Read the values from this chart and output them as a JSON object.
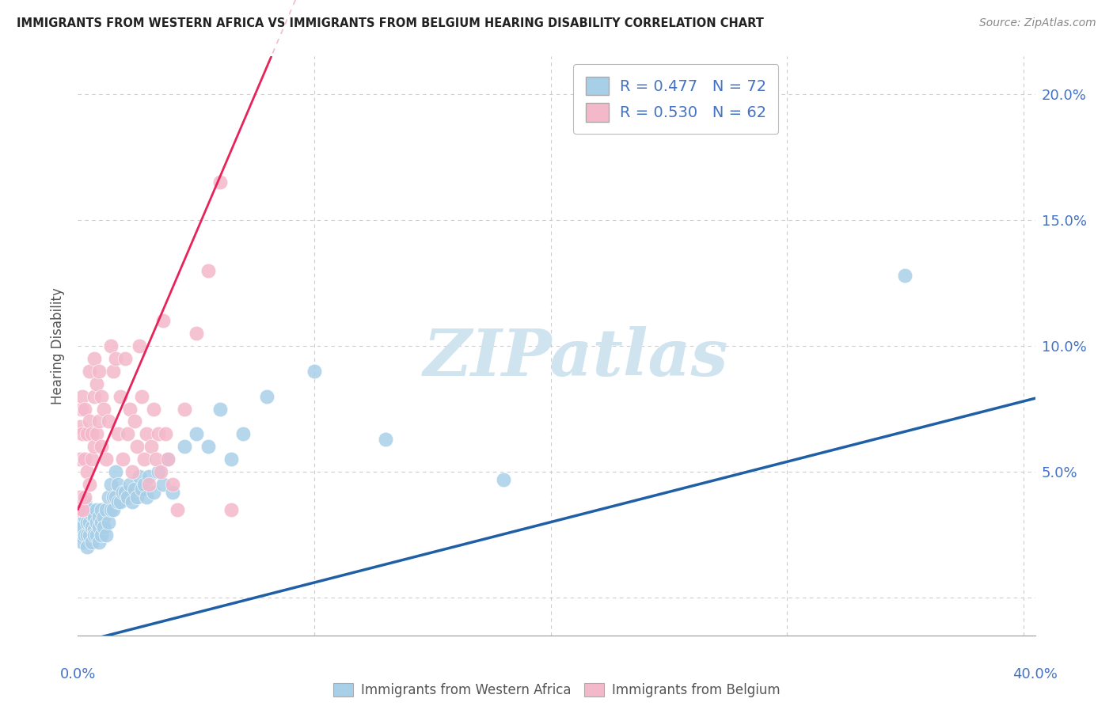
{
  "title": "IMMIGRANTS FROM WESTERN AFRICA VS IMMIGRANTS FROM BELGIUM HEARING DISABILITY CORRELATION CHART",
  "source": "Source: ZipAtlas.com",
  "ylabel": "Hearing Disability",
  "xlim": [
    0.0,
    0.405
  ],
  "ylim": [
    -0.015,
    0.215
  ],
  "yticks": [
    0.0,
    0.05,
    0.1,
    0.15,
    0.2
  ],
  "ytick_labels": [
    "",
    "5.0%",
    "10.0%",
    "15.0%",
    "20.0%"
  ],
  "legend_r1": "R = 0.477",
  "legend_n1": "N = 72",
  "legend_r2": "R = 0.530",
  "legend_n2": "N = 62",
  "blue_color": "#a8cfe8",
  "pink_color": "#f4b8cb",
  "trend_blue": "#1f5fa6",
  "trend_pink": "#e8235a",
  "trend_pink_dash": "#e8a0b8",
  "watermark": "ZIPatlas",
  "watermark_color": "#d0e4f0",
  "blue_intercept": -0.018,
  "blue_slope": 0.24,
  "pink_intercept": 0.035,
  "pink_slope": 2.2,
  "blue_x": [
    0.001,
    0.001,
    0.002,
    0.002,
    0.002,
    0.003,
    0.003,
    0.003,
    0.004,
    0.004,
    0.004,
    0.005,
    0.005,
    0.005,
    0.006,
    0.006,
    0.006,
    0.007,
    0.007,
    0.007,
    0.008,
    0.008,
    0.008,
    0.009,
    0.009,
    0.009,
    0.01,
    0.01,
    0.01,
    0.011,
    0.011,
    0.012,
    0.012,
    0.013,
    0.013,
    0.014,
    0.014,
    0.015,
    0.015,
    0.016,
    0.016,
    0.017,
    0.017,
    0.018,
    0.019,
    0.02,
    0.021,
    0.022,
    0.023,
    0.024,
    0.025,
    0.026,
    0.027,
    0.028,
    0.029,
    0.03,
    0.032,
    0.034,
    0.036,
    0.038,
    0.04,
    0.045,
    0.05,
    0.055,
    0.06,
    0.065,
    0.07,
    0.08,
    0.1,
    0.13,
    0.18,
    0.35
  ],
  "blue_y": [
    0.03,
    0.025,
    0.035,
    0.028,
    0.022,
    0.032,
    0.025,
    0.038,
    0.03,
    0.025,
    0.02,
    0.03,
    0.025,
    0.035,
    0.028,
    0.022,
    0.033,
    0.027,
    0.032,
    0.025,
    0.03,
    0.025,
    0.035,
    0.028,
    0.032,
    0.022,
    0.03,
    0.035,
    0.025,
    0.032,
    0.028,
    0.035,
    0.025,
    0.04,
    0.03,
    0.045,
    0.035,
    0.04,
    0.035,
    0.05,
    0.04,
    0.045,
    0.038,
    0.038,
    0.042,
    0.042,
    0.04,
    0.045,
    0.038,
    0.043,
    0.04,
    0.048,
    0.043,
    0.045,
    0.04,
    0.048,
    0.042,
    0.05,
    0.045,
    0.055,
    0.042,
    0.06,
    0.065,
    0.06,
    0.075,
    0.055,
    0.065,
    0.08,
    0.09,
    0.063,
    0.047,
    0.128
  ],
  "pink_x": [
    0.0005,
    0.001,
    0.001,
    0.001,
    0.0015,
    0.002,
    0.002,
    0.002,
    0.003,
    0.003,
    0.003,
    0.004,
    0.004,
    0.005,
    0.005,
    0.005,
    0.006,
    0.006,
    0.007,
    0.007,
    0.007,
    0.008,
    0.008,
    0.009,
    0.009,
    0.01,
    0.01,
    0.011,
    0.012,
    0.013,
    0.014,
    0.015,
    0.016,
    0.017,
    0.018,
    0.019,
    0.02,
    0.021,
    0.022,
    0.023,
    0.024,
    0.025,
    0.026,
    0.027,
    0.028,
    0.029,
    0.03,
    0.031,
    0.032,
    0.033,
    0.034,
    0.035,
    0.036,
    0.037,
    0.038,
    0.04,
    0.042,
    0.045,
    0.05,
    0.055,
    0.06,
    0.065
  ],
  "pink_y": [
    0.035,
    0.04,
    0.068,
    0.055,
    0.075,
    0.035,
    0.065,
    0.08,
    0.04,
    0.055,
    0.075,
    0.05,
    0.065,
    0.045,
    0.07,
    0.09,
    0.055,
    0.065,
    0.06,
    0.08,
    0.095,
    0.065,
    0.085,
    0.07,
    0.09,
    0.06,
    0.08,
    0.075,
    0.055,
    0.07,
    0.1,
    0.09,
    0.095,
    0.065,
    0.08,
    0.055,
    0.095,
    0.065,
    0.075,
    0.05,
    0.07,
    0.06,
    0.1,
    0.08,
    0.055,
    0.065,
    0.045,
    0.06,
    0.075,
    0.055,
    0.065,
    0.05,
    0.11,
    0.065,
    0.055,
    0.045,
    0.035,
    0.075,
    0.105,
    0.13,
    0.165,
    0.035
  ]
}
